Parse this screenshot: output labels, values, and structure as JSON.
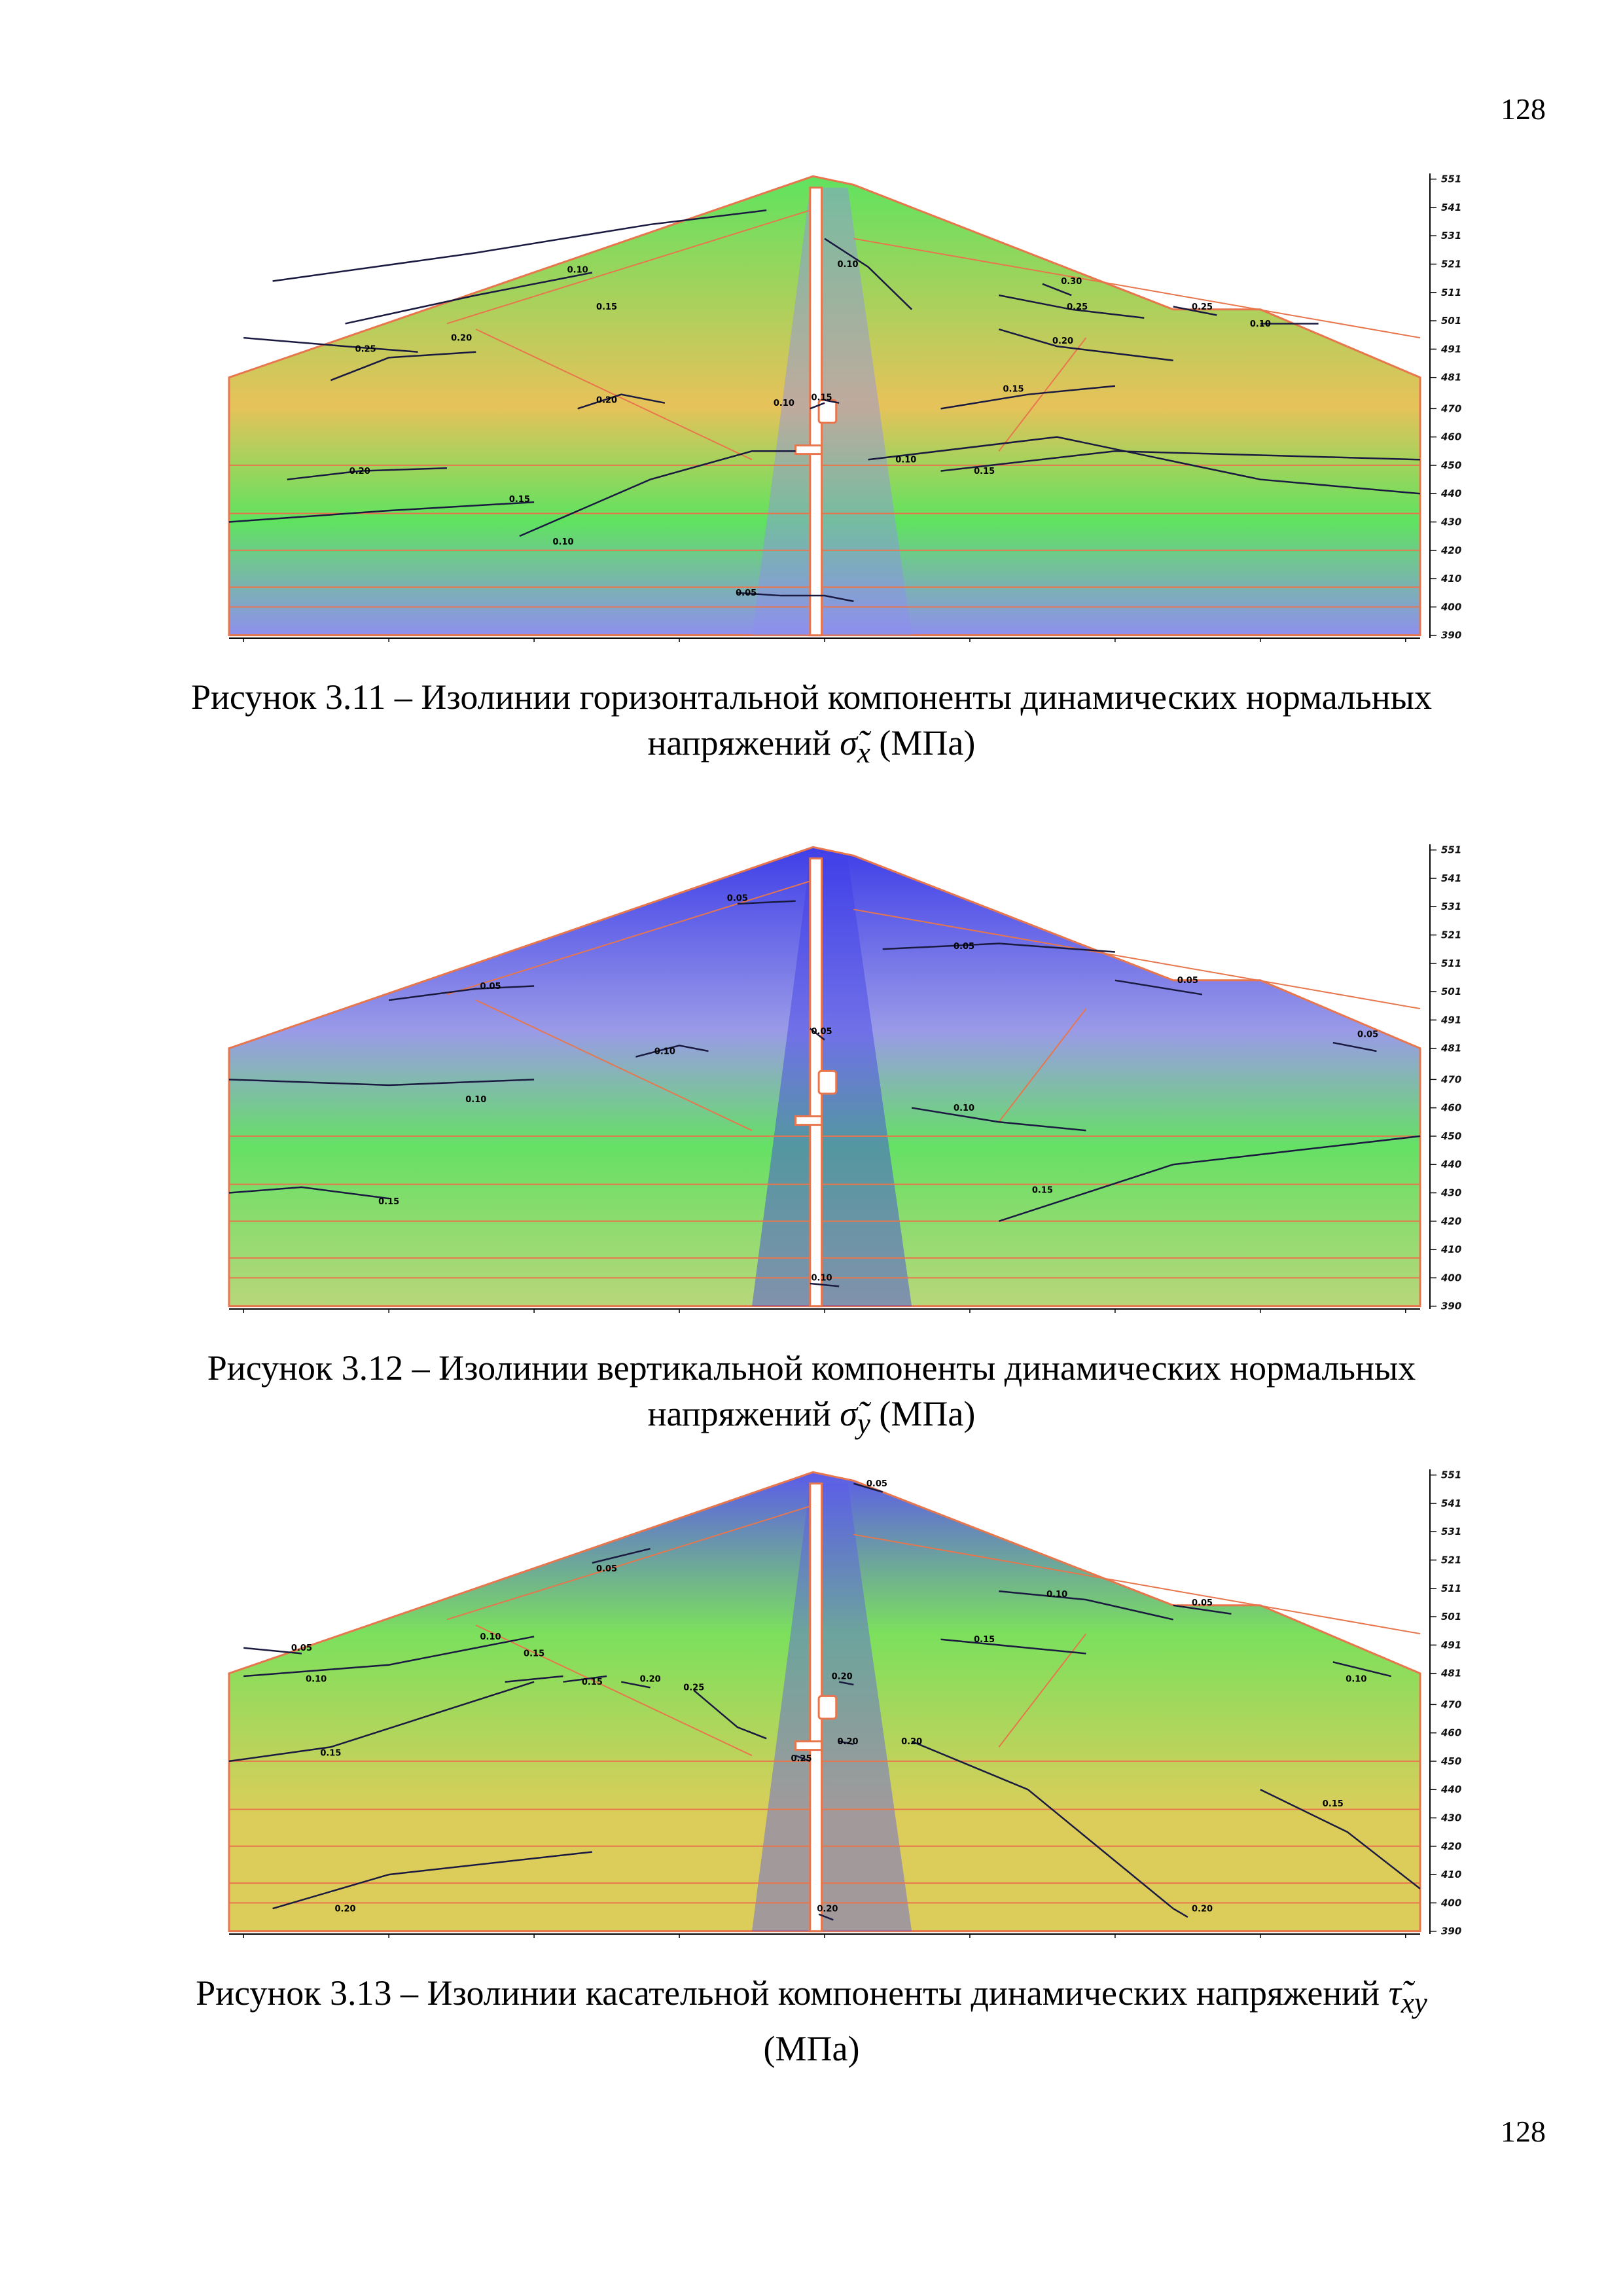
{
  "page": {
    "number_top": "128",
    "number_bottom": "128"
  },
  "figures": [
    {
      "id": "fig-3-11",
      "caption_line1": "Рисунок 3.11 – Изолинии горизонтальной компоненты динамических нормальных",
      "caption_line2_prefix": "напряжений ",
      "caption_symbol": "σ̃",
      "caption_sub": "x",
      "caption_suffix": " (МПа)",
      "colors": {
        "main": "#5fe35f",
        "high": "#e7c25a",
        "low": "#8f8fef"
      },
      "isoline_labels": [
        "0.05",
        "0.10",
        "0.15",
        "0.20",
        "0.25",
        "0.30"
      ]
    },
    {
      "id": "fig-3-12",
      "caption_line1": "Рисунок 3.12 – Изолинии вертикальной компоненты динамических нормальных",
      "caption_line2_prefix": "напряжений ",
      "caption_symbol": "σ̃",
      "caption_sub": "y",
      "caption_suffix": "  (МПа)",
      "colors": {
        "main": "#65e065",
        "high": "#b8d77a",
        "low": "#3e3ee8"
      },
      "isoline_labels": [
        "0.05",
        "0.10",
        "0.15"
      ]
    },
    {
      "id": "fig-3-13",
      "caption_line1": "Рисунок 3.13 – Изолинии касательной компоненты динамических напряжений ",
      "caption_symbol": "τ̃",
      "caption_sub": "xy",
      "caption_line2": "(МПа)",
      "colors": {
        "main": "#7be05d",
        "high": "#dccd5a",
        "low": "#5b5bea"
      },
      "isoline_labels": [
        "0.05",
        "0.10",
        "0.15",
        "0.20",
        "0.25"
      ]
    }
  ],
  "axes": {
    "x_ticks": [
      "-200",
      "-150",
      "-100",
      "-50",
      "0",
      "50",
      "100",
      "150",
      "200"
    ],
    "y_ticks": [
      "551",
      "541",
      "531",
      "521",
      "511",
      "501",
      "491",
      "481",
      "470",
      "460",
      "450",
      "440",
      "430",
      "420",
      "410",
      "400",
      "390"
    ]
  }
}
